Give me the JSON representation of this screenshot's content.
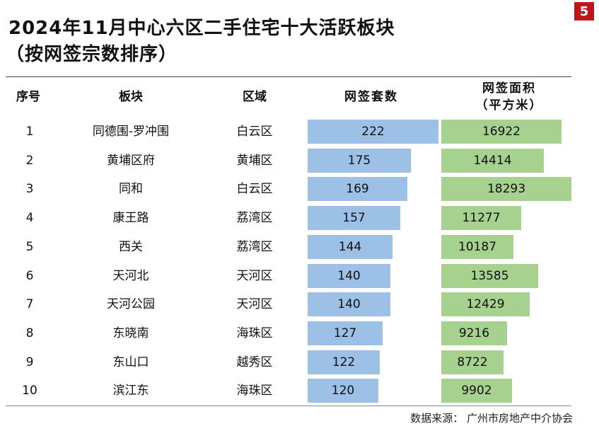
{
  "page_number": "5",
  "title": "2024年11月中心六区二手住宅十大活跃板块",
  "subtitle": "（按网签宗数排序）",
  "source": "数据来源：  广州市房地产中介协会",
  "colors": {
    "accent_red": "#c0141b",
    "bar_blue": "#9dc0e6",
    "bar_green": "#a6d18f"
  },
  "chart_data": {
    "type": "table",
    "headers": [
      "序号",
      "板块",
      "区域",
      "网签套数",
      "网签面积\n（平方米）"
    ],
    "header_area_line1": "网签面积",
    "header_area_line2": "（平方米）",
    "rows": [
      {
        "rank": "1",
        "block": "同德围-罗冲围",
        "district": "白云区",
        "units": 222,
        "area": 16922
      },
      {
        "rank": "2",
        "block": "黄埔区府",
        "district": "黄埔区",
        "units": 175,
        "area": 14414
      },
      {
        "rank": "3",
        "block": "同和",
        "district": "白云区",
        "units": 169,
        "area": 18293
      },
      {
        "rank": "4",
        "block": "康王路",
        "district": "荔湾区",
        "units": 157,
        "area": 11277
      },
      {
        "rank": "5",
        "block": "西关",
        "district": "荔湾区",
        "units": 144,
        "area": 10187
      },
      {
        "rank": "6",
        "block": "天河北",
        "district": "天河区",
        "units": 140,
        "area": 13585
      },
      {
        "rank": "7",
        "block": "天河公园",
        "district": "天河区",
        "units": 140,
        "area": 12429
      },
      {
        "rank": "8",
        "block": "东晓南",
        "district": "海珠区",
        "units": 127,
        "area": 9216
      },
      {
        "rank": "9",
        "block": "东山口",
        "district": "越秀区",
        "units": 122,
        "area": 8722
      },
      {
        "rank": "10",
        "block": "滨江东",
        "district": "海珠区",
        "units": 120,
        "area": 9902
      }
    ],
    "units_axis_max": 222,
    "area_axis_max": 18293
  }
}
